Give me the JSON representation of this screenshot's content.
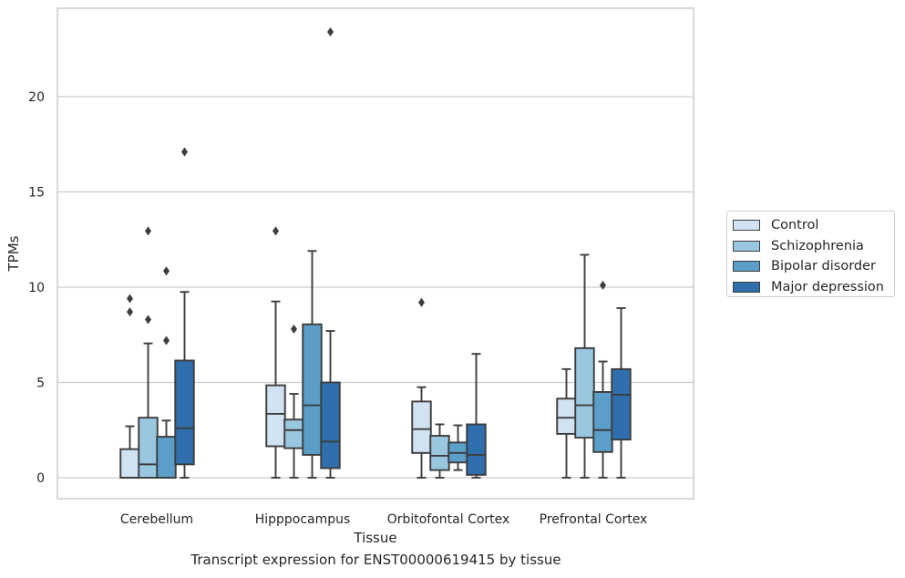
{
  "chart_data": {
    "type": "box",
    "caption": "Transcript expression for ENST00000619415 by tissue",
    "xlabel": "Tissue",
    "ylabel": "TPMs",
    "ylim": [
      -1.1,
      25
    ],
    "yticks": [
      0,
      5,
      10,
      15,
      20
    ],
    "grid": "horizontal",
    "legend_position": "right",
    "categories": [
      "Cerebellum",
      "Hipppocampus",
      "Orbitofontal Cortex",
      "Prefrontal Cortex"
    ],
    "series": [
      {
        "name": "Control",
        "color": "#d1e2f2",
        "boxes": [
          {
            "whisker_low": 0,
            "q1": 0,
            "median": 0,
            "q3": 1.5,
            "whisker_high": 2.7,
            "outliers": [
              8.7,
              9.4
            ]
          },
          {
            "whisker_low": 0,
            "q1": 1.65,
            "median": 3.35,
            "q3": 4.85,
            "whisker_high": 9.25,
            "outliers": [
              12.95
            ]
          },
          {
            "whisker_low": 0,
            "q1": 1.3,
            "median": 2.55,
            "q3": 4.0,
            "whisker_high": 4.75,
            "outliers": [
              9.2
            ]
          },
          {
            "whisker_low": 0,
            "q1": 2.3,
            "median": 3.15,
            "q3": 4.15,
            "whisker_high": 5.7,
            "outliers": []
          }
        ]
      },
      {
        "name": "Schizophrenia",
        "color": "#9ac7e0",
        "boxes": [
          {
            "whisker_low": 0,
            "q1": 0,
            "median": 0.7,
            "q3": 3.15,
            "whisker_high": 7.05,
            "outliers": [
              8.3,
              12.95
            ]
          },
          {
            "whisker_low": 0,
            "q1": 1.55,
            "median": 2.5,
            "q3": 3.05,
            "whisker_high": 4.4,
            "outliers": [
              7.8
            ]
          },
          {
            "whisker_low": 0,
            "q1": 0.4,
            "median": 1.15,
            "q3": 2.2,
            "whisker_high": 2.8,
            "outliers": []
          },
          {
            "whisker_low": 0,
            "q1": 2.1,
            "median": 3.8,
            "q3": 6.8,
            "whisker_high": 11.7,
            "outliers": []
          }
        ]
      },
      {
        "name": "Bipolar disorder",
        "color": "#5b9ec9",
        "boxes": [
          {
            "whisker_low": 0,
            "q1": 0,
            "median": 0,
            "q3": 2.15,
            "whisker_high": 3.0,
            "outliers": [
              7.2,
              10.85
            ]
          },
          {
            "whisker_low": 0,
            "q1": 1.2,
            "median": 3.8,
            "q3": 8.05,
            "whisker_high": 11.9,
            "outliers": []
          },
          {
            "whisker_low": 0.4,
            "q1": 0.8,
            "median": 1.3,
            "q3": 1.85,
            "whisker_high": 2.75,
            "outliers": []
          },
          {
            "whisker_low": 0,
            "q1": 1.35,
            "median": 2.5,
            "q3": 4.5,
            "whisker_high": 6.1,
            "outliers": [
              10.1
            ]
          }
        ]
      },
      {
        "name": "Major depression",
        "color": "#2f6fad",
        "boxes": [
          {
            "whisker_low": 0,
            "q1": 0.7,
            "median": 2.6,
            "q3": 6.15,
            "whisker_high": 9.75,
            "outliers": [
              17.1
            ]
          },
          {
            "whisker_low": 0,
            "q1": 0.5,
            "median": 1.9,
            "q3": 5.0,
            "whisker_high": 7.7,
            "outliers": [
              23.4
            ]
          },
          {
            "whisker_low": 0,
            "q1": 0.15,
            "median": 1.2,
            "q3": 2.8,
            "whisker_high": 6.5,
            "outliers": []
          },
          {
            "whisker_low": 0,
            "q1": 2.0,
            "median": 4.35,
            "q3": 5.7,
            "whisker_high": 8.9,
            "outliers": []
          }
        ]
      }
    ]
  }
}
